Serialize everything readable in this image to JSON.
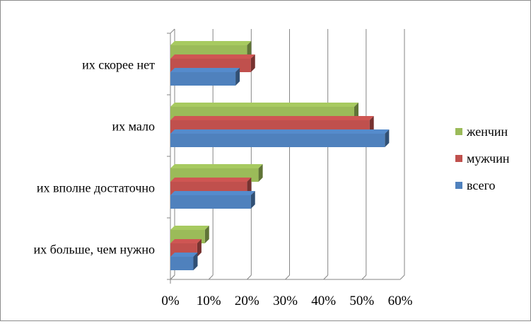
{
  "chart_data": {
    "type": "bar",
    "orientation": "horizontal",
    "style": "3d-clustered",
    "categories": [
      "их скорее нет",
      "их мало",
      "их вполне достаточно",
      "их больше, чем нужно"
    ],
    "series": [
      {
        "name": "женчин",
        "color": "#9bbb59",
        "values": [
          20,
          48,
          23,
          9
        ]
      },
      {
        "name": "мужчин",
        "color": "#c0504d",
        "values": [
          21,
          52,
          20,
          7
        ]
      },
      {
        "name": "всего",
        "color": "#4f81bd",
        "values": [
          17,
          56,
          21,
          6
        ]
      }
    ],
    "x_ticks": [
      "0%",
      "10%",
      "20%",
      "30%",
      "40%",
      "50%",
      "60%"
    ],
    "xlim": [
      0,
      60
    ],
    "unit": "%",
    "grid": true,
    "legend_position": "right"
  }
}
